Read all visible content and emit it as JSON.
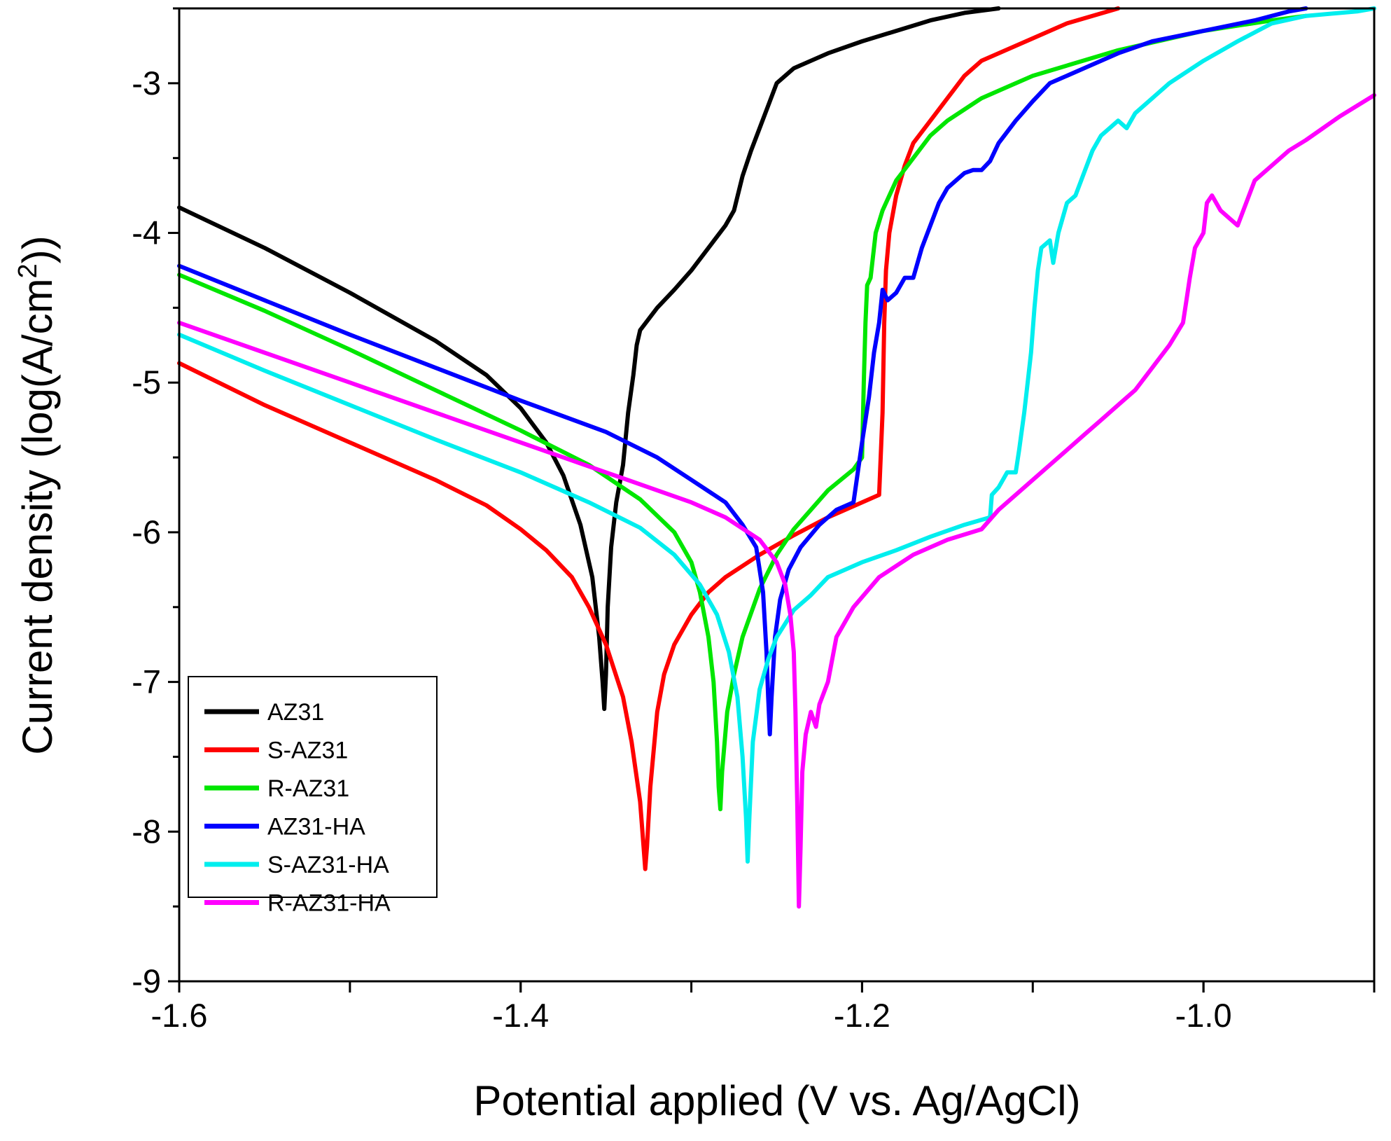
{
  "chart_data": {
    "type": "line",
    "title": "",
    "xlabel": "Potential applied (V vs. Ag/AgCl)",
    "ylabel_prefix": "Current density (log(A/cm",
    "ylabel_sup": "2",
    "ylabel_suffix": "))",
    "xlim": [
      -1.6,
      -0.9
    ],
    "ylim": [
      -9,
      -2.5
    ],
    "xticks": [
      -1.6,
      -1.4,
      -1.2,
      -1.0
    ],
    "xtick_labels": [
      "-1.6",
      "-1.4",
      "-1.2",
      "-1.0"
    ],
    "yticks": [
      -9,
      -8,
      -7,
      -6,
      -5,
      -4,
      -3
    ],
    "ytick_labels": [
      "-9",
      "-8",
      "-7",
      "-6",
      "-5",
      "-4",
      "-3"
    ],
    "grid": false,
    "legend_position": "lower-left",
    "series": [
      {
        "name": "AZ31",
        "color": "#000000",
        "points": [
          [
            -1.6,
            -3.83
          ],
          [
            -1.55,
            -4.1
          ],
          [
            -1.5,
            -4.4
          ],
          [
            -1.45,
            -4.72
          ],
          [
            -1.42,
            -4.95
          ],
          [
            -1.4,
            -5.17
          ],
          [
            -1.385,
            -5.4
          ],
          [
            -1.375,
            -5.62
          ],
          [
            -1.365,
            -5.95
          ],
          [
            -1.358,
            -6.3
          ],
          [
            -1.354,
            -6.7
          ],
          [
            -1.352,
            -7.0
          ],
          [
            -1.351,
            -7.18
          ],
          [
            -1.35,
            -6.95
          ],
          [
            -1.349,
            -6.5
          ],
          [
            -1.347,
            -6.1
          ],
          [
            -1.344,
            -5.8
          ],
          [
            -1.34,
            -5.55
          ],
          [
            -1.337,
            -5.2
          ],
          [
            -1.334,
            -4.95
          ],
          [
            -1.332,
            -4.75
          ],
          [
            -1.33,
            -4.65
          ],
          [
            -1.32,
            -4.5
          ],
          [
            -1.31,
            -4.38
          ],
          [
            -1.3,
            -4.25
          ],
          [
            -1.29,
            -4.1
          ],
          [
            -1.28,
            -3.95
          ],
          [
            -1.275,
            -3.85
          ],
          [
            -1.27,
            -3.62
          ],
          [
            -1.265,
            -3.45
          ],
          [
            -1.26,
            -3.3
          ],
          [
            -1.255,
            -3.15
          ],
          [
            -1.25,
            -3.0
          ],
          [
            -1.24,
            -2.9
          ],
          [
            -1.22,
            -2.8
          ],
          [
            -1.2,
            -2.72
          ],
          [
            -1.18,
            -2.65
          ],
          [
            -1.16,
            -2.58
          ],
          [
            -1.14,
            -2.53
          ],
          [
            -1.12,
            -2.5
          ]
        ]
      },
      {
        "name": "S-AZ31",
        "color": "#ff0000",
        "points": [
          [
            -1.6,
            -4.87
          ],
          [
            -1.55,
            -5.15
          ],
          [
            -1.5,
            -5.4
          ],
          [
            -1.45,
            -5.65
          ],
          [
            -1.42,
            -5.82
          ],
          [
            -1.4,
            -5.98
          ],
          [
            -1.385,
            -6.12
          ],
          [
            -1.37,
            -6.3
          ],
          [
            -1.36,
            -6.5
          ],
          [
            -1.35,
            -6.75
          ],
          [
            -1.34,
            -7.1
          ],
          [
            -1.335,
            -7.4
          ],
          [
            -1.33,
            -7.8
          ],
          [
            -1.328,
            -8.1
          ],
          [
            -1.327,
            -8.25
          ],
          [
            -1.326,
            -8.1
          ],
          [
            -1.324,
            -7.7
          ],
          [
            -1.32,
            -7.2
          ],
          [
            -1.316,
            -6.95
          ],
          [
            -1.31,
            -6.75
          ],
          [
            -1.3,
            -6.55
          ],
          [
            -1.29,
            -6.4
          ],
          [
            -1.28,
            -6.3
          ],
          [
            -1.26,
            -6.15
          ],
          [
            -1.24,
            -6.02
          ],
          [
            -1.22,
            -5.9
          ],
          [
            -1.2,
            -5.8
          ],
          [
            -1.19,
            -5.75
          ],
          [
            -1.188,
            -5.2
          ],
          [
            -1.187,
            -4.6
          ],
          [
            -1.186,
            -4.25
          ],
          [
            -1.184,
            -4.0
          ],
          [
            -1.18,
            -3.75
          ],
          [
            -1.175,
            -3.55
          ],
          [
            -1.17,
            -3.4
          ],
          [
            -1.16,
            -3.25
          ],
          [
            -1.15,
            -3.1
          ],
          [
            -1.14,
            -2.95
          ],
          [
            -1.13,
            -2.85
          ],
          [
            -1.1,
            -2.7
          ],
          [
            -1.08,
            -2.6
          ],
          [
            -1.05,
            -2.5
          ]
        ]
      },
      {
        "name": "R-AZ31",
        "color": "#00e600",
        "points": [
          [
            -1.6,
            -4.28
          ],
          [
            -1.55,
            -4.52
          ],
          [
            -1.5,
            -4.78
          ],
          [
            -1.45,
            -5.05
          ],
          [
            -1.4,
            -5.32
          ],
          [
            -1.36,
            -5.55
          ],
          [
            -1.33,
            -5.78
          ],
          [
            -1.31,
            -6.0
          ],
          [
            -1.3,
            -6.2
          ],
          [
            -1.295,
            -6.4
          ],
          [
            -1.29,
            -6.7
          ],
          [
            -1.287,
            -7.0
          ],
          [
            -1.285,
            -7.4
          ],
          [
            -1.284,
            -7.7
          ],
          [
            -1.283,
            -7.85
          ],
          [
            -1.282,
            -7.6
          ],
          [
            -1.279,
            -7.2
          ],
          [
            -1.275,
            -6.95
          ],
          [
            -1.27,
            -6.7
          ],
          [
            -1.26,
            -6.38
          ],
          [
            -1.25,
            -6.15
          ],
          [
            -1.24,
            -5.98
          ],
          [
            -1.23,
            -5.85
          ],
          [
            -1.22,
            -5.72
          ],
          [
            -1.205,
            -5.58
          ],
          [
            -1.2,
            -5.5
          ],
          [
            -1.199,
            -5.0
          ],
          [
            -1.198,
            -4.6
          ],
          [
            -1.197,
            -4.35
          ],
          [
            -1.195,
            -4.3
          ],
          [
            -1.192,
            -4.0
          ],
          [
            -1.188,
            -3.85
          ],
          [
            -1.18,
            -3.65
          ],
          [
            -1.17,
            -3.5
          ],
          [
            -1.16,
            -3.35
          ],
          [
            -1.15,
            -3.25
          ],
          [
            -1.13,
            -3.1
          ],
          [
            -1.1,
            -2.95
          ],
          [
            -1.05,
            -2.78
          ],
          [
            -1.0,
            -2.65
          ],
          [
            -0.96,
            -2.58
          ],
          [
            -0.94,
            -2.55
          ]
        ]
      },
      {
        "name": "AZ31-HA",
        "color": "#0000ff",
        "points": [
          [
            -1.6,
            -4.22
          ],
          [
            -1.55,
            -4.45
          ],
          [
            -1.5,
            -4.68
          ],
          [
            -1.45,
            -4.9
          ],
          [
            -1.4,
            -5.12
          ],
          [
            -1.35,
            -5.33
          ],
          [
            -1.32,
            -5.5
          ],
          [
            -1.3,
            -5.65
          ],
          [
            -1.28,
            -5.8
          ],
          [
            -1.27,
            -5.95
          ],
          [
            -1.262,
            -6.1
          ],
          [
            -1.258,
            -6.4
          ],
          [
            -1.256,
            -6.8
          ],
          [
            -1.255,
            -7.1
          ],
          [
            -1.254,
            -7.35
          ],
          [
            -1.253,
            -7.1
          ],
          [
            -1.251,
            -6.7
          ],
          [
            -1.248,
            -6.45
          ],
          [
            -1.243,
            -6.25
          ],
          [
            -1.236,
            -6.1
          ],
          [
            -1.225,
            -5.95
          ],
          [
            -1.215,
            -5.85
          ],
          [
            -1.205,
            -5.8
          ],
          [
            -1.2,
            -5.4
          ],
          [
            -1.196,
            -5.1
          ],
          [
            -1.193,
            -4.8
          ],
          [
            -1.19,
            -4.6
          ],
          [
            -1.188,
            -4.38
          ],
          [
            -1.185,
            -4.45
          ],
          [
            -1.18,
            -4.4
          ],
          [
            -1.175,
            -4.3
          ],
          [
            -1.17,
            -4.3
          ],
          [
            -1.165,
            -4.1
          ],
          [
            -1.16,
            -3.95
          ],
          [
            -1.155,
            -3.8
          ],
          [
            -1.15,
            -3.7
          ],
          [
            -1.145,
            -3.65
          ],
          [
            -1.14,
            -3.6
          ],
          [
            -1.135,
            -3.58
          ],
          [
            -1.13,
            -3.58
          ],
          [
            -1.125,
            -3.52
          ],
          [
            -1.12,
            -3.4
          ],
          [
            -1.11,
            -3.25
          ],
          [
            -1.1,
            -3.12
          ],
          [
            -1.09,
            -3.0
          ],
          [
            -1.07,
            -2.9
          ],
          [
            -1.05,
            -2.8
          ],
          [
            -1.03,
            -2.72
          ],
          [
            -1.0,
            -2.65
          ],
          [
            -0.97,
            -2.58
          ],
          [
            -0.95,
            -2.52
          ],
          [
            -0.94,
            -2.5
          ]
        ]
      },
      {
        "name": "S-AZ31-HA",
        "color": "#00eeee",
        "points": [
          [
            -1.6,
            -4.68
          ],
          [
            -1.55,
            -4.92
          ],
          [
            -1.5,
            -5.15
          ],
          [
            -1.45,
            -5.38
          ],
          [
            -1.4,
            -5.6
          ],
          [
            -1.36,
            -5.8
          ],
          [
            -1.33,
            -5.97
          ],
          [
            -1.31,
            -6.15
          ],
          [
            -1.295,
            -6.35
          ],
          [
            -1.285,
            -6.55
          ],
          [
            -1.278,
            -6.8
          ],
          [
            -1.273,
            -7.1
          ],
          [
            -1.27,
            -7.5
          ],
          [
            -1.268,
            -7.9
          ],
          [
            -1.267,
            -8.2
          ],
          [
            -1.266,
            -7.9
          ],
          [
            -1.264,
            -7.4
          ],
          [
            -1.26,
            -7.05
          ],
          [
            -1.255,
            -6.85
          ],
          [
            -1.25,
            -6.7
          ],
          [
            -1.24,
            -6.52
          ],
          [
            -1.23,
            -6.42
          ],
          [
            -1.22,
            -6.3
          ],
          [
            -1.2,
            -6.2
          ],
          [
            -1.18,
            -6.12
          ],
          [
            -1.16,
            -6.03
          ],
          [
            -1.14,
            -5.95
          ],
          [
            -1.125,
            -5.9
          ],
          [
            -1.124,
            -5.75
          ],
          [
            -1.12,
            -5.7
          ],
          [
            -1.115,
            -5.6
          ],
          [
            -1.11,
            -5.6
          ],
          [
            -1.108,
            -5.45
          ],
          [
            -1.105,
            -5.2
          ],
          [
            -1.103,
            -5.0
          ],
          [
            -1.101,
            -4.8
          ],
          [
            -1.099,
            -4.5
          ],
          [
            -1.097,
            -4.25
          ],
          [
            -1.095,
            -4.1
          ],
          [
            -1.09,
            -4.05
          ],
          [
            -1.088,
            -4.2
          ],
          [
            -1.085,
            -4.0
          ],
          [
            -1.08,
            -3.8
          ],
          [
            -1.075,
            -3.75
          ],
          [
            -1.07,
            -3.6
          ],
          [
            -1.065,
            -3.45
          ],
          [
            -1.06,
            -3.35
          ],
          [
            -1.055,
            -3.3
          ],
          [
            -1.05,
            -3.25
          ],
          [
            -1.045,
            -3.3
          ],
          [
            -1.04,
            -3.2
          ],
          [
            -1.03,
            -3.1
          ],
          [
            -1.02,
            -3.0
          ],
          [
            -1.0,
            -2.85
          ],
          [
            -0.98,
            -2.72
          ],
          [
            -0.96,
            -2.6
          ],
          [
            -0.94,
            -2.55
          ],
          [
            -0.91,
            -2.52
          ],
          [
            -0.9,
            -2.5
          ]
        ]
      },
      {
        "name": "R-AZ31-HA",
        "color": "#ff00ff",
        "points": [
          [
            -1.6,
            -4.6
          ],
          [
            -1.55,
            -4.8
          ],
          [
            -1.5,
            -5.0
          ],
          [
            -1.45,
            -5.2
          ],
          [
            -1.4,
            -5.4
          ],
          [
            -1.35,
            -5.6
          ],
          [
            -1.3,
            -5.8
          ],
          [
            -1.28,
            -5.9
          ],
          [
            -1.26,
            -6.05
          ],
          [
            -1.25,
            -6.2
          ],
          [
            -1.245,
            -6.35
          ],
          [
            -1.242,
            -6.55
          ],
          [
            -1.24,
            -6.8
          ],
          [
            -1.239,
            -7.2
          ],
          [
            -1.238,
            -7.8
          ],
          [
            -1.237,
            -8.5
          ],
          [
            -1.236,
            -8.1
          ],
          [
            -1.235,
            -7.6
          ],
          [
            -1.233,
            -7.35
          ],
          [
            -1.23,
            -7.2
          ],
          [
            -1.227,
            -7.3
          ],
          [
            -1.225,
            -7.15
          ],
          [
            -1.22,
            -7.0
          ],
          [
            -1.215,
            -6.7
          ],
          [
            -1.205,
            -6.5
          ],
          [
            -1.19,
            -6.3
          ],
          [
            -1.17,
            -6.15
          ],
          [
            -1.15,
            -6.05
          ],
          [
            -1.13,
            -5.98
          ],
          [
            -1.12,
            -5.85
          ],
          [
            -1.11,
            -5.75
          ],
          [
            -1.1,
            -5.65
          ],
          [
            -1.09,
            -5.55
          ],
          [
            -1.08,
            -5.45
          ],
          [
            -1.07,
            -5.35
          ],
          [
            -1.06,
            -5.25
          ],
          [
            -1.05,
            -5.15
          ],
          [
            -1.04,
            -5.05
          ],
          [
            -1.03,
            -4.9
          ],
          [
            -1.02,
            -4.75
          ],
          [
            -1.012,
            -4.6
          ],
          [
            -1.01,
            -4.45
          ],
          [
            -1.008,
            -4.3
          ],
          [
            -1.005,
            -4.1
          ],
          [
            -1.0,
            -4.0
          ],
          [
            -0.998,
            -3.8
          ],
          [
            -0.995,
            -3.75
          ],
          [
            -0.99,
            -3.85
          ],
          [
            -0.985,
            -3.9
          ],
          [
            -0.98,
            -3.95
          ],
          [
            -0.975,
            -3.8
          ],
          [
            -0.97,
            -3.65
          ],
          [
            -0.96,
            -3.55
          ],
          [
            -0.95,
            -3.45
          ],
          [
            -0.94,
            -3.38
          ],
          [
            -0.93,
            -3.3
          ],
          [
            -0.92,
            -3.22
          ],
          [
            -0.91,
            -3.15
          ],
          [
            -0.9,
            -3.08
          ]
        ]
      }
    ]
  }
}
